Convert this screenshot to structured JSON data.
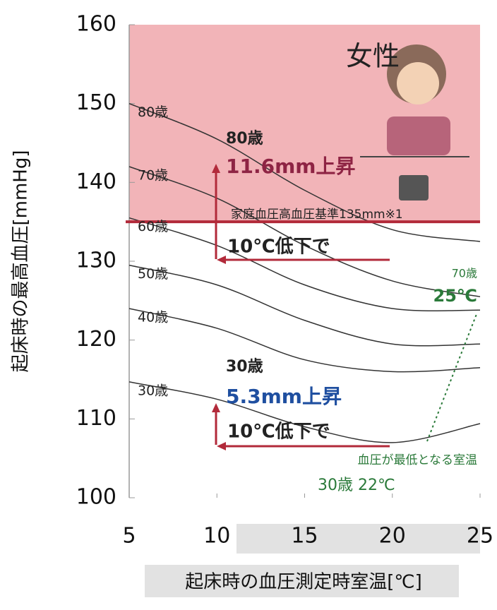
{
  "chart_data": {
    "type": "line",
    "x": [
      5,
      10,
      15,
      20,
      25
    ],
    "series": [
      {
        "name": "80歳",
        "color": "#333333",
        "values": [
          150,
          145.5,
          139,
          134,
          132.5
        ]
      },
      {
        "name": "70歳",
        "color": "#333333",
        "values": [
          142,
          138,
          132,
          127.5,
          125.5
        ]
      },
      {
        "name": "60歳",
        "color": "#333333",
        "values": [
          135.5,
          132,
          127,
          124,
          123.8
        ]
      },
      {
        "name": "50歳",
        "color": "#333333",
        "values": [
          129.5,
          127,
          122.5,
          119.5,
          119.5
        ]
      },
      {
        "name": "40歳",
        "color": "#333333",
        "values": [
          124,
          121.5,
          117.5,
          116,
          116.5
        ]
      },
      {
        "name": "30歳",
        "color": "#333333",
        "values": [
          114.7,
          112.5,
          109,
          107,
          109.4
        ]
      }
    ],
    "xlim": [
      5,
      25
    ],
    "xticks": [
      5,
      10,
      15,
      20,
      25
    ],
    "ylim": [
      100,
      160
    ],
    "yticks": [
      100,
      110,
      120,
      130,
      140,
      150,
      160
    ],
    "threshold": 135,
    "threshold_color": "#b22a3a",
    "zone_color": "#f2b4b8",
    "xlabel": "起床時の血圧測定時室温[℃]",
    "ylabel": "起床時の最高血圧[mmHg]",
    "annotations": [
      "女性",
      "80歳",
      "11.6mm上昇",
      "家庭血圧高血圧基準135mm※1",
      "10℃低下で",
      "30歳",
      "5.3mm上昇",
      "10℃低下で",
      "70歳",
      "25℃",
      "血圧が最低となる室温",
      "30歳 22℃"
    ]
  }
}
